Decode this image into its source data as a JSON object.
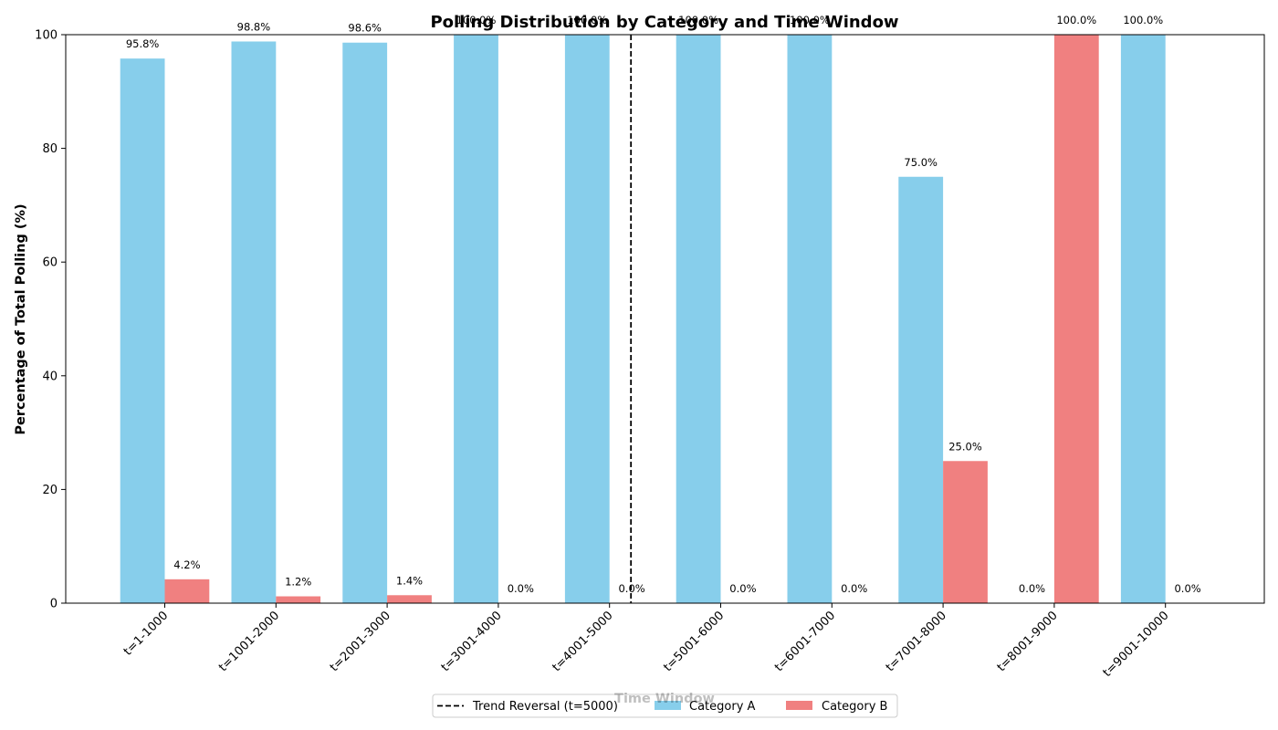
{
  "chart_data": {
    "type": "bar",
    "title": "Polling Distribution by Category and Time Window",
    "xlabel": "Time Window",
    "ylabel": "Percentage of Total Polling (%)",
    "ylim": [
      0,
      100
    ],
    "yticks": [
      "0",
      "20",
      "40",
      "60",
      "80",
      "100"
    ],
    "grid": false,
    "categories": [
      "t=1-1000",
      "t=1001-2000",
      "t=2001-3000",
      "t=3001-4000",
      "t=4001-5000",
      "t=5001-6000",
      "t=6001-7000",
      "t=7001-8000",
      "t=8001-9000",
      "t=9001-10000"
    ],
    "series": [
      {
        "name": "Category A",
        "color": "#87ceeb",
        "values": [
          95.8,
          98.8,
          98.6,
          100.0,
          100.0,
          100.0,
          100.0,
          75.0,
          0.0,
          100.0
        ],
        "labels": [
          "95.8%",
          "98.8%",
          "98.6%",
          "100.0%",
          "100.0%",
          "100.0%",
          "100.0%",
          "75.0%",
          "0.0%",
          "100.0%"
        ]
      },
      {
        "name": "Category B",
        "color": "#f08080",
        "values": [
          4.2,
          1.2,
          1.4,
          0.0,
          0.0,
          0.0,
          0.0,
          25.0,
          100.0,
          0.0
        ],
        "labels": [
          "4.2%",
          "1.2%",
          "1.4%",
          "0.0%",
          "0.0%",
          "0.0%",
          "0.0%",
          "25.0%",
          "100.0%",
          "0.0%"
        ]
      }
    ],
    "annotations": [
      {
        "type": "vline",
        "x_between": [
          "t=4001-5000",
          "t=5001-6000"
        ],
        "style": "dashed",
        "color": "#000000",
        "label": "Trend Reversal (t=5000)"
      }
    ],
    "legend": {
      "placement": "bottom-center",
      "entries": [
        "Trend Reversal (t=5000)",
        "Category A",
        "Category B"
      ]
    }
  }
}
